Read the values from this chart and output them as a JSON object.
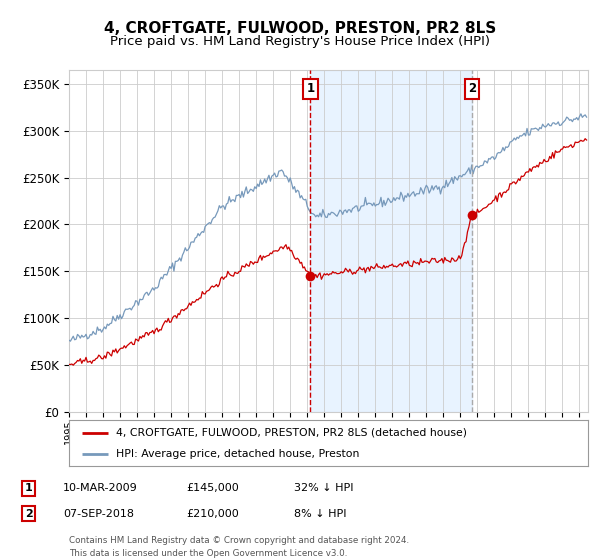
{
  "title": "4, CROFTGATE, FULWOOD, PRESTON, PR2 8LS",
  "subtitle": "Price paid vs. HM Land Registry's House Price Index (HPI)",
  "title_fontsize": 11,
  "subtitle_fontsize": 9.5,
  "ylabel_ticks": [
    "£0",
    "£50K",
    "£100K",
    "£150K",
    "£200K",
    "£250K",
    "£300K",
    "£350K"
  ],
  "ytick_vals": [
    0,
    50000,
    100000,
    150000,
    200000,
    250000,
    300000,
    350000
  ],
  "ylim": [
    0,
    365000
  ],
  "xlim_start": 1995.0,
  "xlim_end": 2025.5,
  "red_line_color": "#cc0000",
  "blue_line_color": "#7799bb",
  "shading_color": "#ddeeff",
  "vline1_color": "#cc0000",
  "vline2_color": "#aaaaaa",
  "vline_style": "--",
  "grid_color": "#cccccc",
  "background_color": "#ffffff",
  "marker1_date": 2009.19,
  "marker1_value": 145000,
  "marker2_date": 2018.68,
  "marker2_value": 210000,
  "legend_label_red": "4, CROFTGATE, FULWOOD, PRESTON, PR2 8LS (detached house)",
  "legend_label_blue": "HPI: Average price, detached house, Preston",
  "table_row1": [
    "1",
    "10-MAR-2009",
    "£145,000",
    "32% ↓ HPI"
  ],
  "table_row2": [
    "2",
    "07-SEP-2018",
    "£210,000",
    "8% ↓ HPI"
  ],
  "footer_text": "Contains HM Land Registry data © Crown copyright and database right 2024.\nThis data is licensed under the Open Government Licence v3.0.",
  "box_color": "#cc0000",
  "seed": 42
}
